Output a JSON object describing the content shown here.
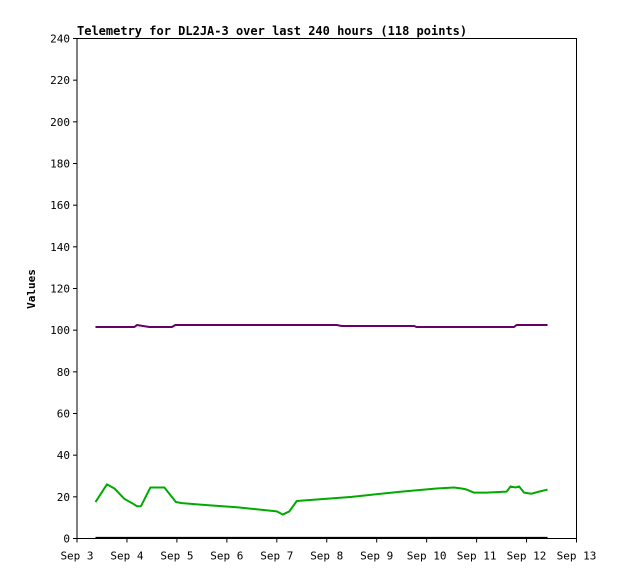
{
  "chart_data": {
    "type": "line",
    "title": "Telemetry for DL2JA-3 over last 240 hours (118 points)",
    "xlabel": "",
    "ylabel": "Values",
    "x_ticks": [
      "Sep 3",
      "Sep 4",
      "Sep 5",
      "Sep 6",
      "Sep 7",
      "Sep 8",
      "Sep 9",
      "Sep 10",
      "Sep 11",
      "Sep 12",
      "Sep 13"
    ],
    "xlim": [
      3,
      13
    ],
    "x_unit": "day of September",
    "y_ticks": [
      0,
      20,
      40,
      60,
      80,
      100,
      120,
      140,
      160,
      180,
      200,
      220,
      240
    ],
    "ylim": [
      0,
      240
    ],
    "grid": false,
    "legend": "none",
    "series": [
      {
        "color": "#660066",
        "points": [
          [
            3.37,
            101.5
          ],
          [
            4.15,
            101.5
          ],
          [
            4.2,
            102.5
          ],
          [
            4.32,
            102
          ],
          [
            4.45,
            101.5
          ],
          [
            4.9,
            101.5
          ],
          [
            4.97,
            102.5
          ],
          [
            6.5,
            102.5
          ],
          [
            8.2,
            102.5
          ],
          [
            8.3,
            102
          ],
          [
            9.75,
            102
          ],
          [
            9.8,
            101.5
          ],
          [
            11.75,
            101.5
          ],
          [
            11.8,
            102.5
          ],
          [
            12.42,
            102.5
          ]
        ]
      },
      {
        "color": "#00aa00",
        "points": [
          [
            3.37,
            17.5
          ],
          [
            3.6,
            26
          ],
          [
            3.75,
            24
          ],
          [
            3.95,
            19
          ],
          [
            4.1,
            17
          ],
          [
            4.2,
            15.5
          ],
          [
            4.28,
            15.5
          ],
          [
            4.47,
            24.5
          ],
          [
            4.75,
            24.5
          ],
          [
            4.98,
            17.5
          ],
          [
            5.1,
            17
          ],
          [
            5.6,
            16
          ],
          [
            6.2,
            15
          ],
          [
            7.0,
            13
          ],
          [
            7.12,
            11.5
          ],
          [
            7.25,
            13
          ],
          [
            7.4,
            18
          ],
          [
            8.5,
            20
          ],
          [
            9.5,
            22.5
          ],
          [
            10.2,
            24
          ],
          [
            10.55,
            24.5
          ],
          [
            10.7,
            24
          ],
          [
            10.8,
            23.5
          ],
          [
            10.95,
            22
          ],
          [
            11.2,
            22
          ],
          [
            11.6,
            22.5
          ],
          [
            11.68,
            25
          ],
          [
            11.78,
            24.5
          ],
          [
            11.85,
            25
          ],
          [
            11.95,
            22
          ],
          [
            12.1,
            21.5
          ],
          [
            12.25,
            22.5
          ],
          [
            12.42,
            23.5
          ]
        ]
      },
      {
        "color": "#000000",
        "points": [
          [
            3.37,
            0.3
          ],
          [
            12.42,
            0.3
          ]
        ]
      }
    ]
  }
}
